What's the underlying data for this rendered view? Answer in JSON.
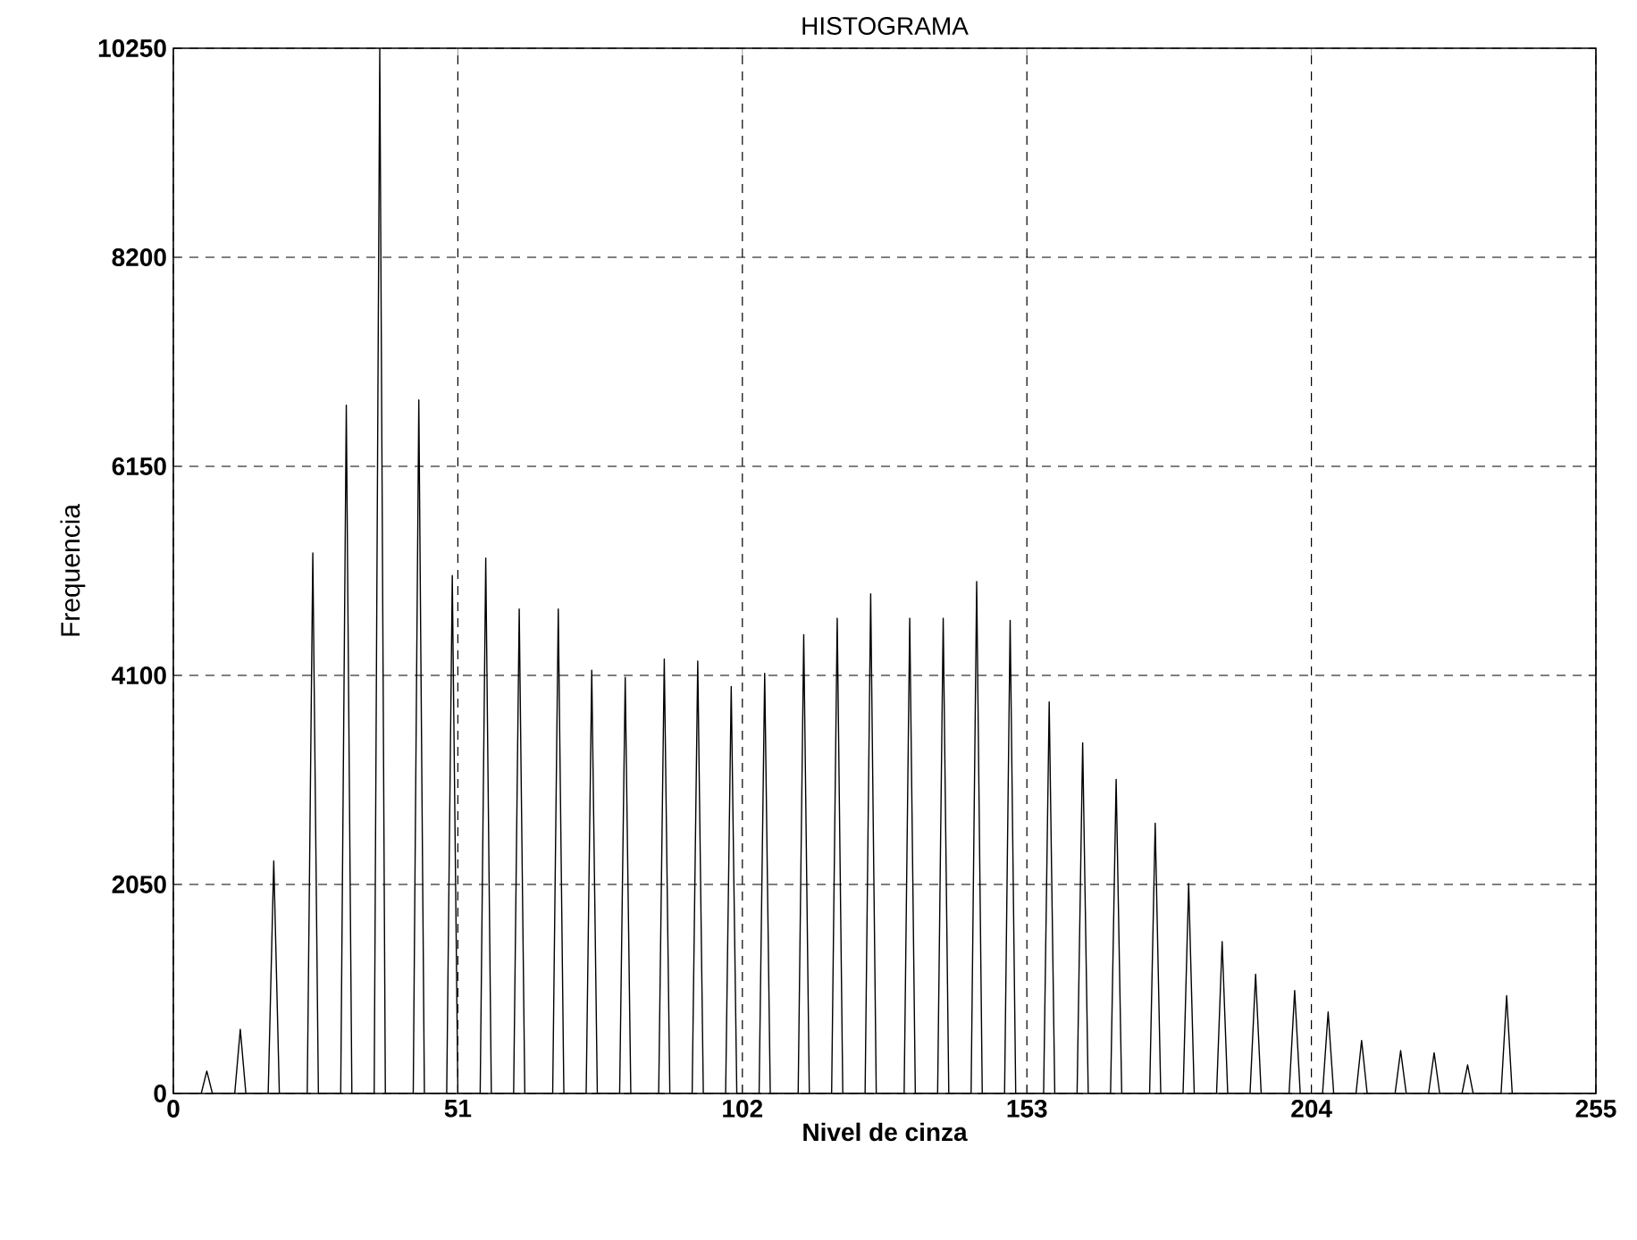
{
  "chart_data": {
    "type": "line",
    "title": "HISTOGRAMA",
    "xlabel": "Nivel de cinza",
    "ylabel": "Frequencia",
    "series": [
      {
        "color": "#000000",
        "x": [
          0,
          5,
          6,
          7,
          11,
          12,
          13,
          17,
          18,
          19,
          24,
          25,
          26,
          30,
          31,
          32,
          36,
          37,
          38,
          43,
          44,
          45,
          49,
          50,
          51,
          55,
          56,
          57,
          61,
          62,
          63,
          68,
          69,
          70,
          74,
          75,
          76,
          80,
          81,
          82,
          87,
          88,
          89,
          93,
          94,
          95,
          99,
          100,
          101,
          105,
          106,
          107,
          112,
          113,
          114,
          118,
          119,
          120,
          124,
          125,
          126,
          131,
          132,
          133,
          137,
          138,
          139,
          143,
          144,
          145,
          149,
          150,
          151,
          156,
          157,
          158,
          162,
          163,
          164,
          168,
          169,
          170,
          175,
          176,
          177,
          181,
          182,
          183,
          187,
          188,
          189,
          193,
          194,
          195,
          200,
          201,
          202,
          206,
          207,
          208,
          212,
          213,
          214,
          219,
          220,
          221,
          225,
          226,
          227,
          231,
          232,
          233,
          238,
          239,
          240,
          255
        ],
        "values": [
          0,
          0,
          220,
          0,
          0,
          630,
          0,
          0,
          2280,
          0,
          0,
          5300,
          0,
          0,
          6750,
          0,
          0,
          10250,
          0,
          0,
          6800,
          0,
          0,
          5080,
          0,
          0,
          5250,
          0,
          0,
          4750,
          0,
          0,
          4750,
          0,
          0,
          4150,
          0,
          0,
          4080,
          0,
          0,
          4260,
          0,
          0,
          4240,
          0,
          0,
          3990,
          0,
          0,
          4120,
          0,
          0,
          4500,
          0,
          0,
          4660,
          0,
          0,
          4900,
          0,
          0,
          4660,
          0,
          0,
          4660,
          0,
          0,
          5020,
          0,
          0,
          4640,
          0,
          0,
          3840,
          0,
          0,
          3440,
          0,
          0,
          3080,
          0,
          0,
          2650,
          0,
          0,
          2060,
          0,
          0,
          1490,
          0,
          0,
          1170,
          0,
          0,
          1010,
          0,
          0,
          800,
          0,
          0,
          520,
          0,
          0,
          420,
          0,
          0,
          400,
          0,
          0,
          280,
          0,
          0,
          960,
          0,
          0
        ]
      }
    ],
    "xlim": [
      0,
      255
    ],
    "xticks": [
      0,
      51,
      102,
      153,
      204,
      255
    ],
    "ylim": [
      0,
      10250
    ],
    "yticks": [
      0,
      2050,
      4100,
      6150,
      8200,
      10250
    ],
    "grid": true,
    "marker": "none",
    "line_style": "solid"
  }
}
